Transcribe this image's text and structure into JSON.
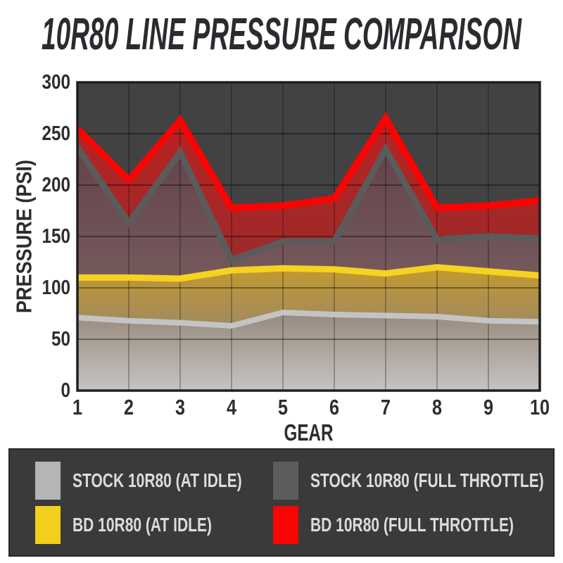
{
  "title": "10R80 LINE PRESSURE COMPARISON",
  "colors": {
    "page_bg": "#ffffff",
    "plot_bg": "#424242",
    "axis_border": "#1f1f1f",
    "title_text": "#292b2e",
    "tick_label": "#2d2d2d",
    "legend_bg": "#3a3a3a",
    "legend_text": "#dcdcdc"
  },
  "chart_data": {
    "type": "area",
    "title": "10R80 LINE PRESSURE COMPARISON",
    "x": [
      1,
      2,
      3,
      4,
      5,
      6,
      7,
      8,
      9,
      10
    ],
    "xlabel": "GEAR",
    "ylabel": "PRESSURE (PSI)",
    "ylim": [
      0,
      300
    ],
    "yticks": [
      0,
      50,
      100,
      150,
      200,
      250,
      300
    ],
    "grid": true,
    "legend_position": "bottom",
    "series": [
      {
        "key": "stock_idle",
        "name": "STOCK 10R80 (AT IDLE)",
        "color": "#c4c4c4",
        "values": [
          71,
          68,
          66,
          63,
          76,
          74,
          73,
          72,
          68,
          67
        ]
      },
      {
        "key": "bd_idle",
        "name": "BD 10R80 (AT IDLE)",
        "color": "#f6d221",
        "values": [
          110,
          110,
          109,
          117,
          119,
          118,
          114,
          120,
          116,
          112
        ]
      },
      {
        "key": "stock_ft",
        "name": "STOCK 10R80 (FULL THROTTLE)",
        "color": "#5b5b5b",
        "values": [
          237,
          163,
          232,
          127,
          145,
          145,
          235,
          147,
          150,
          148
        ]
      },
      {
        "key": "bd_ft",
        "name": "BD 10R80 (FULL THROTTLE)",
        "color": "#fd0202",
        "values": [
          255,
          205,
          263,
          178,
          180,
          187,
          265,
          178,
          180,
          185
        ]
      }
    ]
  },
  "legend": {
    "items": [
      {
        "label": "STOCK 10R80 (AT IDLE)",
        "color": "#b5b5b5"
      },
      {
        "label": "STOCK 10R80 (FULL THROTTLE)",
        "color": "#5d5d5d"
      },
      {
        "label": "BD 10R80 (AT IDLE)",
        "color": "#f2cf1d"
      },
      {
        "label": "BD 10R80 (FULL THROTTLE)",
        "color": "#fb0404"
      }
    ]
  }
}
